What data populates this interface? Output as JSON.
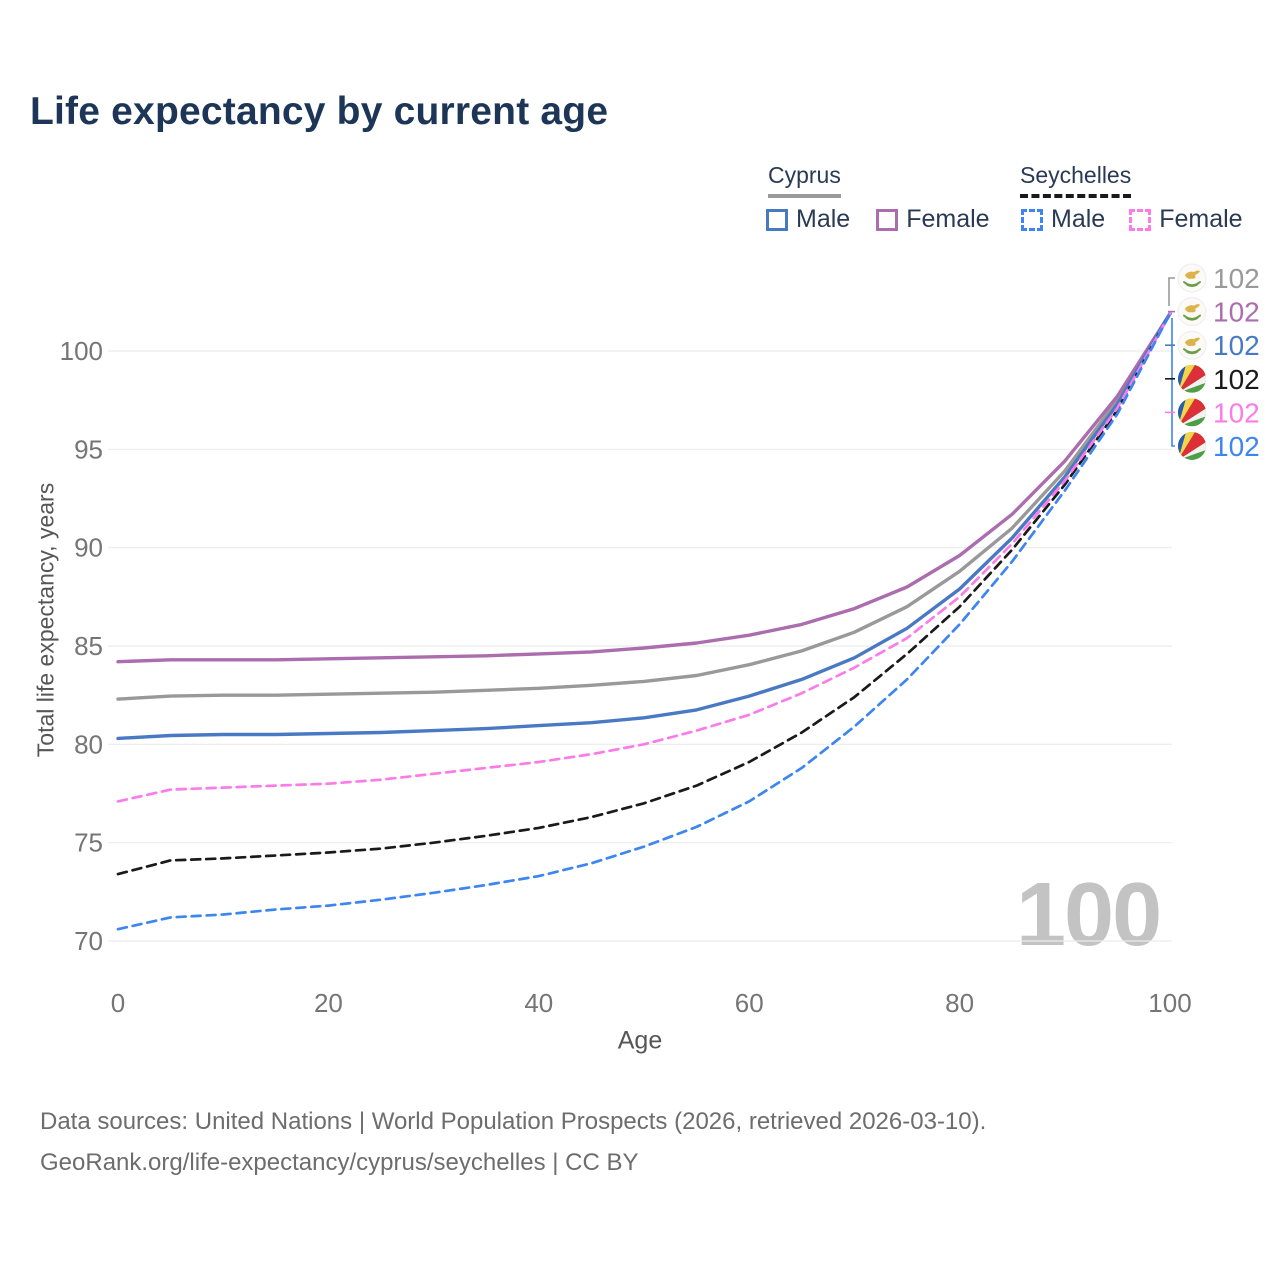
{
  "title": "Life expectancy by current age",
  "legend": {
    "groups": [
      {
        "label": "Cyprus",
        "line_style": "solid",
        "underline_color": "#999999",
        "items": [
          {
            "label": "Male",
            "color": "#4a79c4",
            "dash": false
          },
          {
            "label": "Female",
            "color": "#ab6dad",
            "dash": false
          }
        ]
      },
      {
        "label": "Seychelles",
        "line_style": "dashed",
        "underline_color": "#1a1a1a",
        "items": [
          {
            "label": "Male",
            "color": "#3d85f0",
            "dash": true
          },
          {
            "label": "Female",
            "color": "#fb7ce8",
            "dash": true
          }
        ]
      }
    ]
  },
  "chart_data": {
    "type": "line",
    "title": "Life expectancy by current age",
    "xlabel": "Age",
    "ylabel": "Total life expectancy, years",
    "x": [
      0,
      5,
      10,
      15,
      20,
      25,
      30,
      35,
      40,
      45,
      50,
      55,
      60,
      65,
      70,
      75,
      80,
      85,
      90,
      95,
      100
    ],
    "xlim": [
      0,
      100
    ],
    "ylim": [
      70,
      102
    ],
    "xticks": [
      0,
      20,
      40,
      60,
      80,
      100
    ],
    "yticks": [
      70,
      75,
      80,
      85,
      90,
      95,
      100
    ],
    "grid": "horizontal",
    "legend_position": "top-right",
    "series": [
      {
        "name": "Cyprus total",
        "country": "Cyprus",
        "sex": "total",
        "flag": "cyprus",
        "color": "#999999",
        "dash": false,
        "end_label": "102",
        "values": [
          82.3,
          82.45,
          82.5,
          82.5,
          82.55,
          82.6,
          82.65,
          82.75,
          82.85,
          83.0,
          83.2,
          83.5,
          84.05,
          84.75,
          85.7,
          87.0,
          88.8,
          91.0,
          93.9,
          97.5,
          101.9
        ]
      },
      {
        "name": "Cyprus female",
        "country": "Cyprus",
        "sex": "female",
        "flag": "cyprus",
        "color": "#ab6dad",
        "dash": false,
        "end_label": "102",
        "values": [
          84.2,
          84.3,
          84.3,
          84.3,
          84.35,
          84.4,
          84.45,
          84.5,
          84.6,
          84.7,
          84.9,
          85.15,
          85.55,
          86.1,
          86.9,
          88.0,
          89.6,
          91.7,
          94.4,
          97.7,
          101.9
        ]
      },
      {
        "name": "Cyprus male",
        "country": "Cyprus",
        "sex": "male",
        "flag": "cyprus",
        "color": "#4a79c4",
        "dash": false,
        "end_label": "102",
        "values": [
          80.3,
          80.45,
          80.5,
          80.5,
          80.55,
          80.6,
          80.7,
          80.8,
          80.95,
          81.1,
          81.35,
          81.75,
          82.45,
          83.3,
          84.4,
          85.9,
          87.9,
          90.5,
          93.6,
          97.3,
          101.9
        ]
      },
      {
        "name": "Seychelles total",
        "country": "Seychelles",
        "sex": "total",
        "flag": "seychelles",
        "color": "#1a1a1a",
        "dash": true,
        "end_label": "102",
        "values": [
          73.4,
          74.1,
          74.2,
          74.35,
          74.5,
          74.7,
          75.0,
          75.35,
          75.75,
          76.3,
          77.0,
          77.9,
          79.1,
          80.6,
          82.4,
          84.6,
          87.0,
          89.9,
          93.2,
          97.0,
          101.9
        ]
      },
      {
        "name": "Seychelles female",
        "country": "Seychelles",
        "sex": "female",
        "flag": "seychelles",
        "color": "#fb7ce8",
        "dash": true,
        "end_label": "102",
        "values": [
          77.1,
          77.7,
          77.8,
          77.9,
          78.0,
          78.2,
          78.5,
          78.8,
          79.1,
          79.5,
          80.0,
          80.7,
          81.5,
          82.6,
          83.9,
          85.4,
          87.5,
          90.2,
          93.4,
          97.1,
          101.9
        ]
      },
      {
        "name": "Seychelles male",
        "country": "Seychelles",
        "sex": "male",
        "flag": "seychelles",
        "color": "#3d85f0",
        "dash": true,
        "end_label": "102",
        "values": [
          70.6,
          71.2,
          71.35,
          71.6,
          71.8,
          72.1,
          72.45,
          72.85,
          73.3,
          73.95,
          74.8,
          75.8,
          77.1,
          78.8,
          80.9,
          83.3,
          86.1,
          89.3,
          92.9,
          96.8,
          101.9
        ]
      }
    ],
    "end_labels_order": [
      {
        "value": "102",
        "color": "#999999",
        "flag": "cyprus"
      },
      {
        "value": "102",
        "color": "#ab6dad",
        "flag": "cyprus"
      },
      {
        "value": "102",
        "color": "#4a79c4",
        "flag": "cyprus"
      },
      {
        "value": "102",
        "color": "#1a1a1a",
        "flag": "seychelles"
      },
      {
        "value": "102",
        "color": "#fb7ce8",
        "flag": "seychelles"
      },
      {
        "value": "102",
        "color": "#3d85f0",
        "flag": "seychelles"
      }
    ]
  },
  "current_age_indicator": "100",
  "footer": {
    "line1": "Data sources: United Nations | World Population Prospects (2026, retrieved 2026-03-10).",
    "line2": "GeoRank.org/life-expectancy/cyprus/seychelles | CC BY"
  },
  "icons": {
    "cyprus_flag": "cyprus-flag-icon",
    "seychelles_flag": "seychelles-flag-icon"
  }
}
